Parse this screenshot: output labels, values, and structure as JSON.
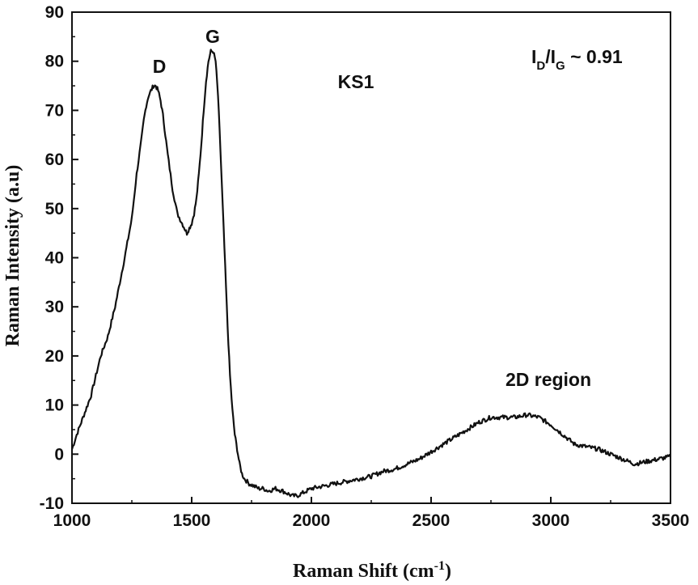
{
  "chart_data": {
    "type": "line",
    "title": "",
    "xlabel": "Raman Shift (cm",
    "xlabel_sup": "-1",
    "xlabel_close": ")",
    "ylabel": "Raman Intensity (a.u)",
    "xlim": [
      1000,
      3500
    ],
    "ylim": [
      -10,
      90
    ],
    "grid": false,
    "x_ticks": [
      1000,
      1500,
      2000,
      2500,
      3000,
      3500
    ],
    "y_ticks": [
      -10,
      0,
      10,
      20,
      30,
      40,
      50,
      60,
      70,
      80,
      90
    ],
    "series": [
      {
        "name": "KS1",
        "x": [
          1000,
          1020,
          1050,
          1080,
          1100,
          1120,
          1150,
          1180,
          1200,
          1220,
          1250,
          1270,
          1290,
          1300,
          1310,
          1320,
          1330,
          1340,
          1350,
          1360,
          1370,
          1380,
          1390,
          1400,
          1420,
          1440,
          1460,
          1470,
          1480,
          1490,
          1500,
          1510,
          1520,
          1530,
          1540,
          1550,
          1560,
          1570,
          1580,
          1590,
          1600,
          1610,
          1620,
          1630,
          1640,
          1650,
          1660,
          1670,
          1680,
          1690,
          1700,
          1710,
          1720,
          1740,
          1760,
          1780,
          1800,
          1820,
          1850,
          1880,
          1900,
          1920,
          1940,
          1960,
          1980,
          2000,
          2050,
          2100,
          2150,
          2200,
          2250,
          2300,
          2350,
          2400,
          2450,
          2500,
          2550,
          2600,
          2650,
          2700,
          2750,
          2800,
          2850,
          2900,
          2950,
          3000,
          3050,
          3100,
          3150,
          3200,
          3250,
          3300,
          3350,
          3400,
          3450,
          3500
        ],
        "y": [
          1,
          4,
          8,
          12,
          16,
          20,
          24,
          30,
          35,
          40,
          48,
          57,
          64,
          68,
          71,
          73,
          74,
          75,
          75,
          74,
          72,
          69,
          65,
          61,
          54,
          49,
          47,
          46,
          45,
          46,
          47,
          49,
          52,
          57,
          63,
          70,
          76,
          80,
          82,
          82,
          80,
          73,
          62,
          50,
          38,
          26,
          16,
          9,
          4,
          1,
          -2,
          -4,
          -5,
          -6,
          -6.5,
          -7,
          -7,
          -7.5,
          -7,
          -7.5,
          -8,
          -8.5,
          -8.5,
          -8,
          -7.5,
          -7,
          -6.5,
          -6,
          -5.5,
          -5,
          -4.5,
          -3.5,
          -3,
          -2,
          -1,
          0.5,
          2,
          3.5,
          5,
          6.5,
          7.5,
          7.5,
          7.5,
          8,
          7.5,
          6,
          4,
          2,
          1.5,
          1,
          0,
          -1,
          -2,
          -1.5,
          -1,
          -0.5
        ]
      }
    ],
    "annotations": {
      "peak_d": "D",
      "peak_g": "G",
      "sample": "KS1",
      "ratio": {
        "i1": "I",
        "d": "D",
        "slash": "/I",
        "g": "G",
        "value": " ~ 0.91"
      },
      "region_2d": "2D region"
    }
  }
}
